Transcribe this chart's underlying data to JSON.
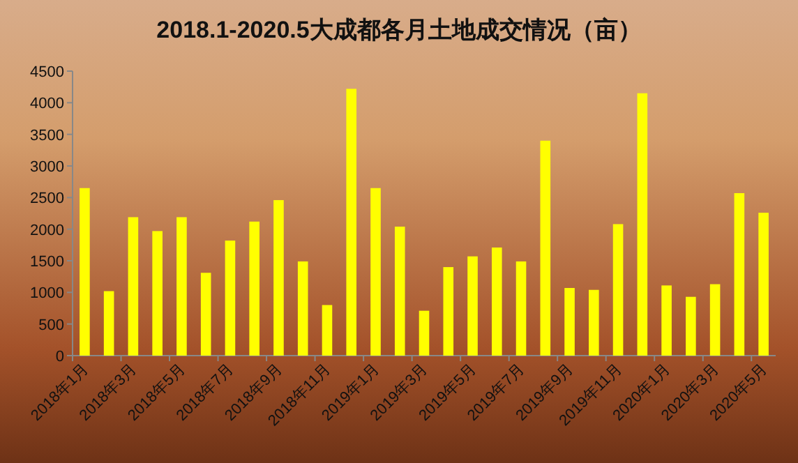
{
  "chart_data": {
    "type": "bar",
    "title": "2018.1-2020.5大成都各月土地成交情况（亩）",
    "categories": [
      "2018年1月",
      null,
      "2018年3月",
      null,
      "2018年5月",
      null,
      "2018年7月",
      null,
      "2018年9月",
      null,
      "2018年11月",
      null,
      "2019年1月",
      null,
      "2019年3月",
      null,
      "2019年5月",
      null,
      "2019年7月",
      null,
      "2019年9月",
      null,
      "2019年11月",
      null,
      "2020年1月",
      null,
      "2020年3月",
      null,
      "2020年5月"
    ],
    "values": [
      2650,
      1020,
      2190,
      1970,
      2190,
      1310,
      1820,
      2120,
      2460,
      1490,
      800,
      4220,
      2650,
      2040,
      710,
      1400,
      1570,
      1710,
      1490,
      3400,
      1070,
      1040,
      2080,
      4150,
      1110,
      930,
      1130,
      2570,
      2260
    ],
    "color": "#ffff00",
    "ylim": [
      0,
      4500
    ],
    "yticks": [
      0,
      500,
      1000,
      1500,
      2000,
      2500,
      3000,
      3500,
      4000,
      4500
    ],
    "grid": false
  }
}
